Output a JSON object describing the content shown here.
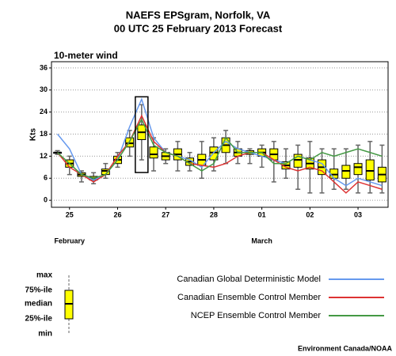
{
  "chart_data": {
    "type": "boxplot",
    "title": "NAEFS EPSgram, Norfolk, VA",
    "subtitle": "00 UTC 25 February 2013 Forecast",
    "panel_title": "10-meter wind",
    "y_label": "Kts",
    "categories": [
      null,
      null,
      null,
      null,
      null,
      null,
      null,
      null,
      null,
      null,
      null,
      null,
      null,
      null,
      null,
      null,
      null,
      null,
      null,
      null,
      null,
      null,
      null,
      null,
      null,
      null,
      null,
      null
    ],
    "xlim": [
      -0.5,
      27.5
    ],
    "xticks": [
      {
        "value": 1,
        "label": "25",
        "color": "#000000"
      },
      {
        "value": 5,
        "label": "26",
        "color": "#000000"
      },
      {
        "value": 9,
        "label": "27",
        "color": "#000000"
      },
      {
        "value": 13,
        "label": "28",
        "color": "#000000"
      },
      {
        "value": 17,
        "label": "01",
        "color": "#000000"
      },
      {
        "value": 21,
        "label": "02",
        "color": "#cc0000"
      },
      {
        "value": 25,
        "label": "03",
        "color": "#cc0000"
      }
    ],
    "month_labels": [
      {
        "value": 1,
        "label": "February"
      },
      {
        "value": 17,
        "label": "March"
      }
    ],
    "ylim": [
      -1.9,
      37.7
    ],
    "yticks": [
      0,
      6,
      12,
      18,
      24,
      30,
      36
    ],
    "grid": true,
    "box_color": "#ffff00",
    "highlight_index": 7,
    "boxes": {
      "min": [
        12.5,
        7,
        5,
        4.5,
        6,
        9,
        12,
        11,
        8,
        10,
        8,
        8,
        6,
        8,
        10,
        10,
        10,
        9,
        5,
        6,
        3,
        2,
        2,
        3,
        3,
        2,
        2,
        2
      ],
      "q1": [
        13,
        9,
        6.5,
        5.5,
        7,
        10,
        14.5,
        16.5,
        11.5,
        11,
        11,
        9.5,
        9.5,
        11,
        13,
        12,
        12.5,
        12,
        11,
        8.5,
        9,
        8.5,
        7,
        6,
        6,
        7,
        5.5,
        5
      ],
      "median": [
        13,
        10,
        7,
        6,
        8,
        11,
        15.5,
        18.5,
        12.5,
        12,
        12.5,
        10.5,
        11,
        13,
        15,
        13,
        13,
        13,
        12.5,
        9.5,
        11,
        10,
        9,
        7,
        8,
        9,
        8,
        7
      ],
      "q3": [
        13,
        11,
        7.5,
        6.5,
        8.5,
        12,
        17,
        20.5,
        14.5,
        13,
        14,
        11.5,
        12.5,
        14.5,
        17,
        14,
        13.5,
        14,
        14,
        10.5,
        12.5,
        11.5,
        11,
        8.5,
        9.5,
        10,
        11,
        9
      ],
      "max": [
        13.5,
        12,
        8,
        7.5,
        10,
        13,
        19,
        26,
        17,
        14,
        16,
        13,
        16,
        17,
        19,
        16,
        14,
        15,
        16,
        14,
        15,
        16,
        14,
        14,
        14,
        15,
        16,
        15
      ]
    },
    "series": [
      {
        "name": "Canadian Global Deterministic Model",
        "color": "#6699ee",
        "values": [
          18,
          14,
          7,
          5.5,
          7,
          11,
          20,
          27.5,
          17,
          13,
          12,
          11,
          9,
          13,
          16,
          14,
          13,
          12,
          11,
          10,
          12,
          11,
          10,
          6,
          4,
          6,
          5,
          4
        ]
      },
      {
        "name": "Canadian Ensemble Control Member",
        "color": "#dd3333",
        "values": [
          13,
          9,
          7,
          5,
          7,
          12,
          16,
          23,
          16,
          13,
          12,
          10,
          9.5,
          9,
          10,
          12,
          13,
          13,
          11,
          9,
          8,
          9,
          8,
          5,
          2,
          5,
          4,
          3
        ]
      },
      {
        "name": "NCEP Ensemble Control Member",
        "color": "#449944",
        "values": [
          13,
          10,
          7,
          6,
          7,
          11,
          16,
          22,
          15,
          13,
          12,
          10,
          8,
          10,
          17,
          13,
          13,
          13,
          10,
          10,
          12,
          11,
          13,
          12,
          13,
          14,
          13,
          12
        ]
      }
    ],
    "box_key": [
      "max",
      "75%-ile",
      "median",
      "25%-ile",
      "min"
    ],
    "credit": "Environment Canada/NOAA"
  }
}
